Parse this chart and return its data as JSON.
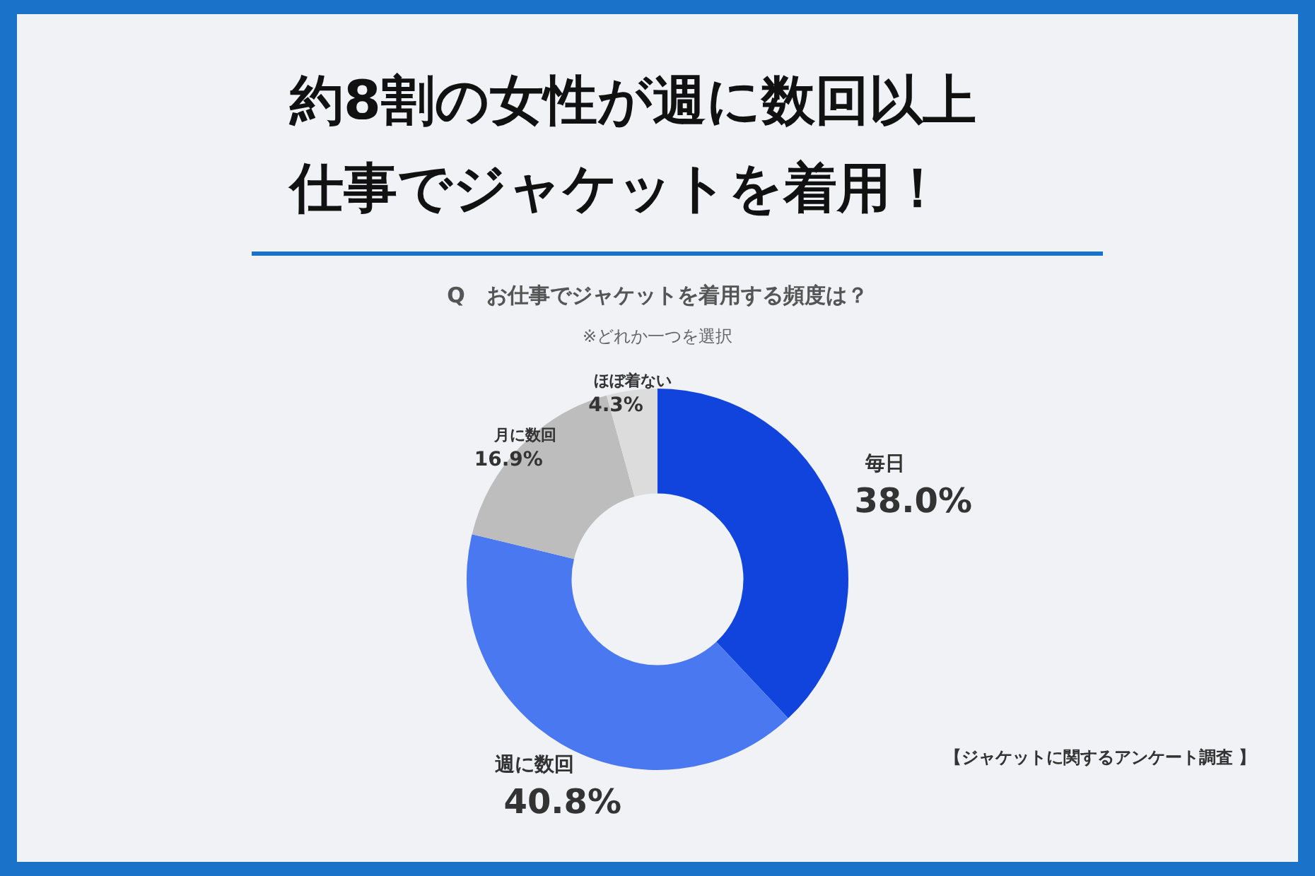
{
  "chart_data": {
    "type": "donut",
    "title": "約8割の女性が週に数回以上仕事でジャケットを着用！",
    "subtitle": "Q　お仕事でジャケットを着用する頻度は？",
    "categories": [
      "毎日",
      "週に数回",
      "月に数回",
      "ほぼ着ない"
    ],
    "values": [
      38.0,
      40.8,
      16.9,
      4.3
    ],
    "value_labels": [
      "38.0%",
      "40.8%",
      "16.9%",
      "4.3%"
    ],
    "colors": [
      "#1144dd",
      "#4a78f0",
      "#bdbdbd",
      "#dcdcdc"
    ],
    "annotations": [
      "※どれか一つを選択",
      "【ジャケットに関するアンケート調査 】"
    ]
  }
}
